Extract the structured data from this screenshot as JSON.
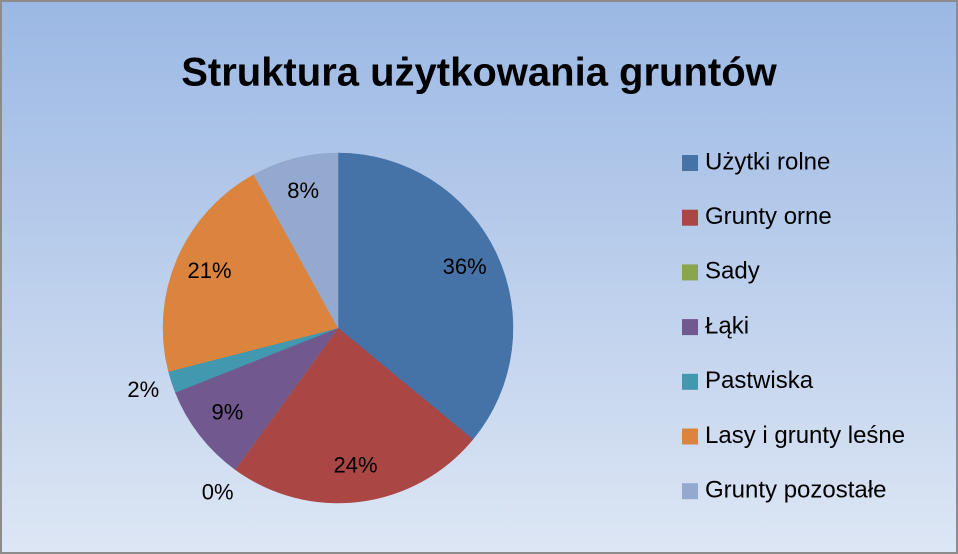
{
  "chart_data": {
    "type": "pie",
    "title": "Struktura użytkowania gruntów",
    "categories": [
      "Użytki rolne",
      "Grunty orne",
      "Sady",
      "Łąki",
      "Pastwiska",
      "Lasy i grunty leśne",
      "Grunty pozostałe"
    ],
    "values": [
      36,
      24,
      0,
      9,
      2,
      21,
      8
    ],
    "value_labels": [
      "36%",
      "24%",
      "0%",
      "9%",
      "2%",
      "21%",
      "8%"
    ],
    "colors": [
      "#4572a7",
      "#aa4643",
      "#89a54e",
      "#71588f",
      "#4198af",
      "#db843d",
      "#93a9cf"
    ],
    "legend": "right"
  }
}
